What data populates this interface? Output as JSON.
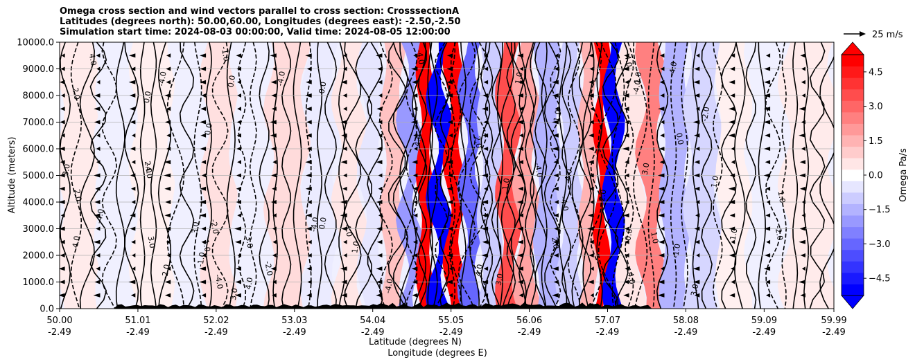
{
  "chart_data": {
    "type": "heatmap",
    "title_lines": [
      "Omega cross section and wind vectors parallel to cross section: CrosssectionA",
      "Latitudes (degrees north): 50.00,60.00, Longitudes (degrees east): -2.50,-2.50",
      "Simulation start time: 2024-08-03 00:00:00, Valid time: 2024-08-05 12:00:00"
    ],
    "ylabel": "Altitude (meters)",
    "xlabel_lines": [
      "Latitude (degrees N)",
      "Longitude (degrees E)"
    ],
    "xlim": [
      50.0,
      59.99
    ],
    "ylim": [
      0,
      10000
    ],
    "x_ticks": [
      {
        "lat": "50.00",
        "lon": "-2.49",
        "value": 50.0
      },
      {
        "lat": "51.01",
        "lon": "-2.49",
        "value": 51.01
      },
      {
        "lat": "52.02",
        "lon": "-2.49",
        "value": 52.02
      },
      {
        "lat": "53.03",
        "lon": "-2.49",
        "value": 53.03
      },
      {
        "lat": "54.04",
        "lon": "-2.49",
        "value": 54.04
      },
      {
        "lat": "55.05",
        "lon": "-2.49",
        "value": 55.05
      },
      {
        "lat": "56.06",
        "lon": "-2.49",
        "value": 56.06
      },
      {
        "lat": "57.07",
        "lon": "-2.49",
        "value": 57.07
      },
      {
        "lat": "58.08",
        "lon": "-2.49",
        "value": 58.08
      },
      {
        "lat": "59.09",
        "lon": "-2.49",
        "value": 59.09
      },
      {
        "lat": "59.99",
        "lon": "-2.49",
        "value": 59.99
      }
    ],
    "y_ticks": [
      {
        "label": "0.0",
        "value": 0
      },
      {
        "label": "1000.0",
        "value": 1000
      },
      {
        "label": "2000.0",
        "value": 2000
      },
      {
        "label": "3000.0",
        "value": 3000
      },
      {
        "label": "4000.0",
        "value": 4000
      },
      {
        "label": "5000.0",
        "value": 5000
      },
      {
        "label": "6000.0",
        "value": 6000
      },
      {
        "label": "7000.0",
        "value": 7000
      },
      {
        "label": "8000.0",
        "value": 8000
      },
      {
        "label": "9000.0",
        "value": 9000
      },
      {
        "label": "10000.0",
        "value": 10000
      }
    ],
    "grid": "horizontal",
    "colorbar": {
      "label": "Omega Pa/s",
      "range": [
        -5.25,
        5.25
      ],
      "extend": "both",
      "ticks": [
        {
          "label": "4.5",
          "value": 4.5
        },
        {
          "label": "3.0",
          "value": 3.0
        },
        {
          "label": "1.5",
          "value": 1.5
        },
        {
          "label": "0.0",
          "value": 0.0
        },
        {
          "label": "−1.5",
          "value": -1.5
        },
        {
          "label": "−3.0",
          "value": -3.0
        },
        {
          "label": "−4.5",
          "value": -4.5
        }
      ]
    },
    "quiver_key": {
      "label": "25 m/s",
      "value": 25
    },
    "colors": {
      "positive": "#ff0000",
      "negative": "#0000ff",
      "neutral": "#ffffff",
      "terrain": "#000000"
    },
    "omega_bands": [
      {
        "lat": 50.3,
        "omega": 0.4
      },
      {
        "lat": 50.7,
        "omega": -0.3
      },
      {
        "lat": 51.2,
        "omega": 0.3
      },
      {
        "lat": 51.7,
        "omega": -0.2
      },
      {
        "lat": 52.05,
        "omega": 0.6
      },
      {
        "lat": 52.45,
        "omega": -0.3
      },
      {
        "lat": 52.95,
        "omega": 0.7
      },
      {
        "lat": 53.4,
        "omega": -0.4
      },
      {
        "lat": 53.75,
        "omega": 0.5
      },
      {
        "lat": 54.05,
        "omega": -0.5
      },
      {
        "lat": 54.3,
        "omega": 1.2
      },
      {
        "lat": 54.55,
        "omega": -2.0
      },
      {
        "lat": 54.72,
        "omega": 5.0
      },
      {
        "lat": 54.9,
        "omega": -5.0
      },
      {
        "lat": 55.1,
        "omega": 5.0
      },
      {
        "lat": 55.3,
        "omega": -3.0
      },
      {
        "lat": 55.55,
        "omega": -1.0
      },
      {
        "lat": 55.8,
        "omega": 3.5
      },
      {
        "lat": 56.0,
        "omega": 1.8
      },
      {
        "lat": 56.3,
        "omega": -1.5
      },
      {
        "lat": 56.6,
        "omega": -1.0
      },
      {
        "lat": 56.85,
        "omega": 1.5
      },
      {
        "lat": 57.0,
        "omega": 5.0
      },
      {
        "lat": 57.12,
        "omega": -5.0
      },
      {
        "lat": 57.35,
        "omega": 0.5
      },
      {
        "lat": 57.65,
        "omega": 2.5
      },
      {
        "lat": 57.9,
        "omega": -1.5
      },
      {
        "lat": 58.3,
        "omega": -0.8
      },
      {
        "lat": 58.7,
        "omega": 0.3
      },
      {
        "lat": 59.1,
        "omega": -0.3
      },
      {
        "lat": 59.6,
        "omega": 0.4
      }
    ],
    "contour_labels": [
      "0.0",
      "1.0",
      "-1.0",
      "2.0",
      "-2.0",
      "3.0",
      "4.0",
      "-4.0"
    ]
  }
}
